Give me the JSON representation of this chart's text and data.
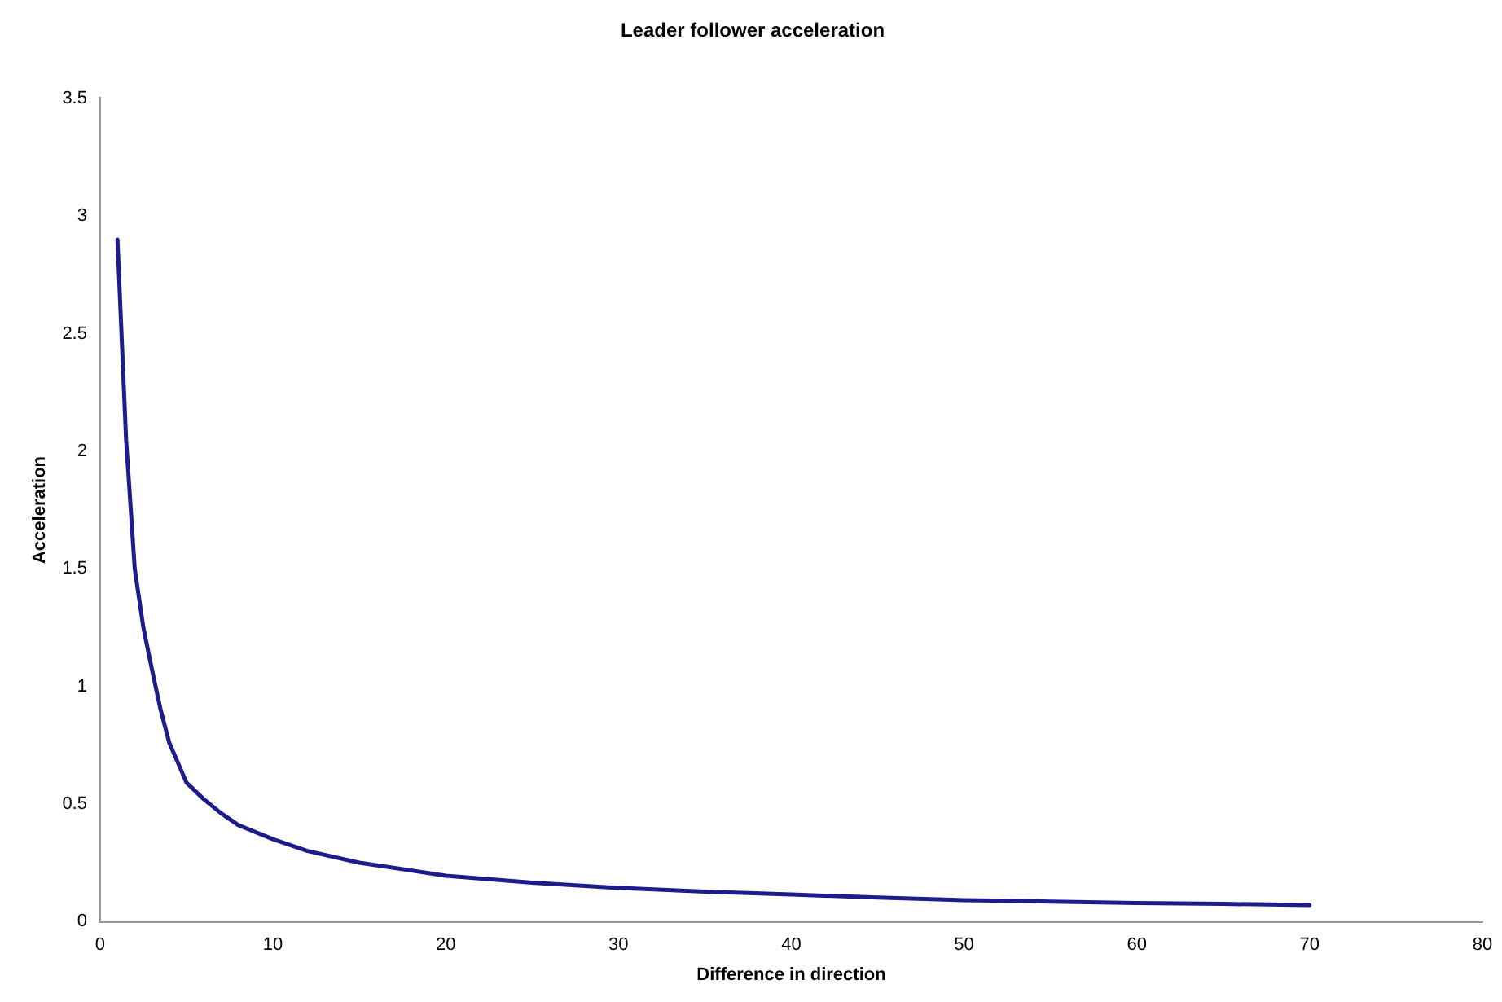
{
  "chart_data": {
    "type": "line",
    "title": "Leader follower acceleration",
    "xlabel": "Difference in direction",
    "ylabel": "Acceleration",
    "x": [
      1,
      1.5,
      2,
      2.5,
      3,
      3.5,
      4,
      5,
      6,
      7,
      8,
      10,
      12,
      15,
      20,
      25,
      30,
      35,
      40,
      45,
      50,
      55,
      60,
      65,
      70
    ],
    "series": [
      {
        "color": "#1c1c8a",
        "values": [
          2.9,
          2.05,
          1.5,
          1.25,
          1.07,
          0.9,
          0.76,
          0.59,
          0.52,
          0.46,
          0.41,
          0.35,
          0.3,
          0.25,
          0.195,
          0.165,
          0.143,
          0.127,
          0.115,
          0.102,
          0.091,
          0.085,
          0.079,
          0.075,
          0.07
        ]
      }
    ],
    "xlim": [
      0,
      80
    ],
    "xticks": [
      0,
      10,
      20,
      30,
      40,
      50,
      60,
      70,
      80
    ],
    "ylim": [
      0,
      3.5
    ],
    "yticks": [
      0,
      0.5,
      1,
      1.5,
      2,
      2.5,
      3,
      3.5
    ],
    "grid": false,
    "legend": false,
    "marker": "none",
    "line_style": "solid"
  }
}
